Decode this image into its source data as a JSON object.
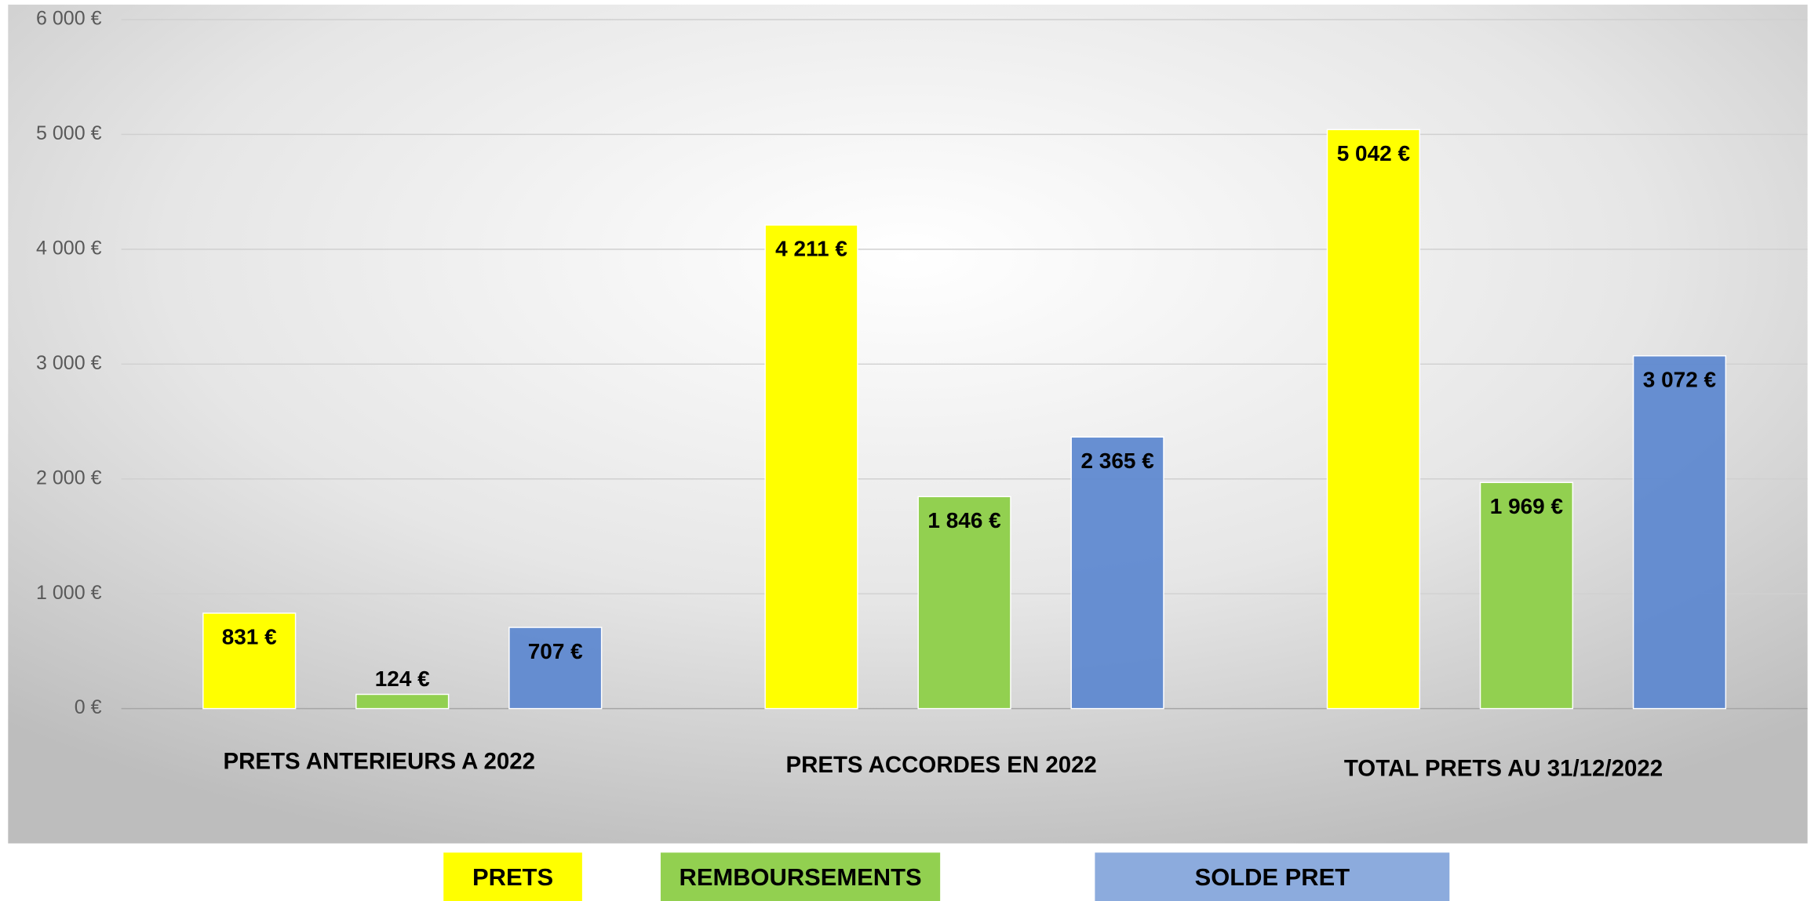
{
  "chart_data": {
    "type": "bar",
    "categories": [
      "PRETS ANTERIEURS A 2022",
      "PRETS ACCORDES EN 2022",
      "TOTAL PRETS AU 31/12/2022"
    ],
    "series": [
      {
        "name": "PRETS",
        "color": "#ffff00",
        "values": [
          831,
          4211,
          5042
        ],
        "value_labels": [
          "831 €",
          "4 211 €",
          "5 042 €"
        ]
      },
      {
        "name": "REMBOURSEMENTS",
        "color": "#92d050",
        "values": [
          124,
          1846,
          1969
        ],
        "value_labels": [
          "124 €",
          "1 846 €",
          "1 969 €"
        ]
      },
      {
        "name": "SOLDE PRET",
        "color": "#5b87cf",
        "values": [
          707,
          2365,
          3072
        ],
        "value_labels": [
          "707 €",
          "2 365 €",
          "3 072 €"
        ]
      }
    ],
    "ylim": [
      0,
      6000
    ],
    "yticks": [
      {
        "value": 0,
        "label": "0 €"
      },
      {
        "value": 1000,
        "label": "1 000 €"
      },
      {
        "value": 2000,
        "label": "2 000 €"
      },
      {
        "value": 3000,
        "label": "3 000 €"
      },
      {
        "value": 4000,
        "label": "4 000 €"
      },
      {
        "value": 5000,
        "label": "5 000 €"
      },
      {
        "value": 6000,
        "label": "6 000 €"
      }
    ],
    "grid": true,
    "legend": "bottom"
  }
}
